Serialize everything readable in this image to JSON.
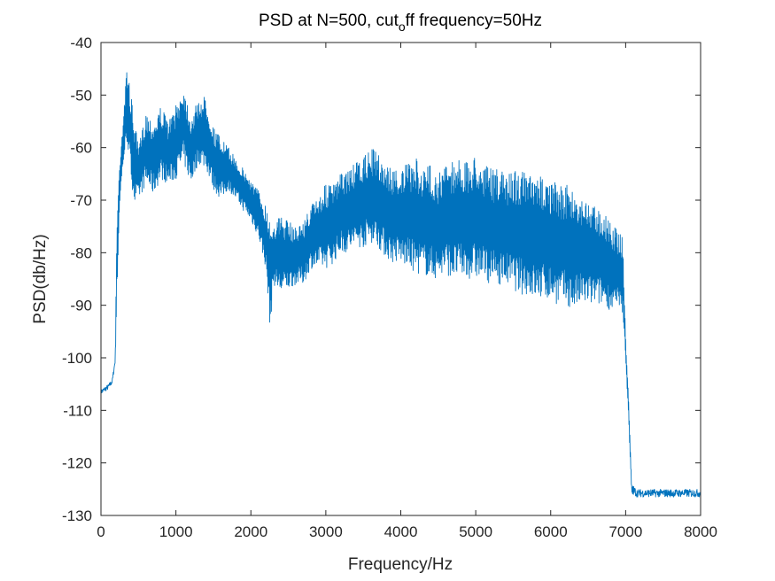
{
  "chart_data": {
    "type": "line",
    "title_main": "PSD at N=500, cut",
    "title_sub": "o",
    "title_tail": "ff frequency=50Hz",
    "xlabel": "Frequency/Hz",
    "ylabel": "PSD(db/Hz)",
    "xlim": [
      0,
      8000
    ],
    "ylim": [
      -130,
      -40
    ],
    "x_ticks": [
      0,
      1000,
      2000,
      3000,
      4000,
      5000,
      6000,
      7000,
      8000
    ],
    "y_ticks": [
      -40,
      -50,
      -60,
      -70,
      -80,
      -90,
      -100,
      -110,
      -120,
      -130
    ],
    "x_tick_labels": [
      "0",
      "1000",
      "2000",
      "3000",
      "4000",
      "5000",
      "6000",
      "7000",
      "8000"
    ],
    "y_tick_labels": [
      "-40",
      "-50",
      "-60",
      "-70",
      "-80",
      "-90",
      "-100",
      "-110",
      "-120",
      "-130"
    ],
    "grid": false,
    "line_color": "#0072BD",
    "series": [
      {
        "upper": [
          [
            0,
            -106
          ],
          [
            100,
            -105
          ],
          [
            150,
            -104
          ],
          [
            190,
            -100
          ],
          [
            210,
            -75
          ],
          [
            250,
            -62
          ],
          [
            300,
            -53
          ],
          [
            350,
            -44
          ],
          [
            400,
            -50
          ],
          [
            500,
            -60
          ],
          [
            600,
            -53
          ],
          [
            700,
            -55
          ],
          [
            800,
            -52
          ],
          [
            900,
            -55
          ],
          [
            1000,
            -52
          ],
          [
            1100,
            -48
          ],
          [
            1200,
            -54
          ],
          [
            1300,
            -51
          ],
          [
            1400,
            -50
          ],
          [
            1500,
            -56
          ],
          [
            1600,
            -58
          ],
          [
            1700,
            -60
          ],
          [
            1800,
            -62
          ],
          [
            1900,
            -64
          ],
          [
            2000,
            -66
          ],
          [
            2100,
            -68
          ],
          [
            2200,
            -71
          ],
          [
            2300,
            -74
          ],
          [
            2400,
            -73
          ],
          [
            2500,
            -74
          ],
          [
            2600,
            -75
          ],
          [
            2700,
            -74
          ],
          [
            2800,
            -71
          ],
          [
            2900,
            -69
          ],
          [
            3000,
            -67
          ],
          [
            3100,
            -67
          ],
          [
            3200,
            -65
          ],
          [
            3300,
            -64
          ],
          [
            3400,
            -63
          ],
          [
            3500,
            -62
          ],
          [
            3600,
            -60
          ],
          [
            3700,
            -61
          ],
          [
            3800,
            -63
          ],
          [
            3900,
            -64
          ],
          [
            4000,
            -64
          ],
          [
            4100,
            -63
          ],
          [
            4200,
            -62
          ],
          [
            4300,
            -64
          ],
          [
            4400,
            -63
          ],
          [
            4500,
            -65
          ],
          [
            4600,
            -63
          ],
          [
            4700,
            -62
          ],
          [
            4800,
            -62
          ],
          [
            4900,
            -63
          ],
          [
            5000,
            -61
          ],
          [
            5100,
            -63
          ],
          [
            5200,
            -64
          ],
          [
            5300,
            -64
          ],
          [
            5400,
            -65
          ],
          [
            5500,
            -64
          ],
          [
            5600,
            -64
          ],
          [
            5700,
            -65
          ],
          [
            5800,
            -66
          ],
          [
            5900,
            -65
          ],
          [
            6000,
            -66
          ],
          [
            6100,
            -67
          ],
          [
            6200,
            -67
          ],
          [
            6300,
            -68
          ],
          [
            6400,
            -69
          ],
          [
            6500,
            -70
          ],
          [
            6600,
            -71
          ],
          [
            6700,
            -72
          ],
          [
            6800,
            -74
          ],
          [
            6900,
            -76
          ],
          [
            6960,
            -77
          ],
          [
            7000,
            -96
          ],
          [
            7040,
            -108
          ],
          [
            7080,
            -124
          ],
          [
            7150,
            -125
          ],
          [
            8000,
            -125
          ]
        ],
        "lower": [
          [
            0,
            -107
          ],
          [
            100,
            -106
          ],
          [
            150,
            -105
          ],
          [
            190,
            -101
          ],
          [
            210,
            -90
          ],
          [
            250,
            -71
          ],
          [
            300,
            -63
          ],
          [
            350,
            -59
          ],
          [
            400,
            -66
          ],
          [
            450,
            -71
          ],
          [
            500,
            -70
          ],
          [
            600,
            -67
          ],
          [
            700,
            -69
          ],
          [
            800,
            -66
          ],
          [
            900,
            -67
          ],
          [
            1000,
            -66
          ],
          [
            1100,
            -63
          ],
          [
            1200,
            -67
          ],
          [
            1300,
            -63
          ],
          [
            1400,
            -64
          ],
          [
            1500,
            -68
          ],
          [
            1600,
            -70
          ],
          [
            1700,
            -68
          ],
          [
            1800,
            -70
          ],
          [
            1900,
            -72
          ],
          [
            2000,
            -74
          ],
          [
            2100,
            -77
          ],
          [
            2200,
            -83
          ],
          [
            2260,
            -95
          ],
          [
            2300,
            -86
          ],
          [
            2400,
            -88
          ],
          [
            2500,
            -87
          ],
          [
            2600,
            -86
          ],
          [
            2700,
            -86
          ],
          [
            2800,
            -83
          ],
          [
            2900,
            -83
          ],
          [
            3000,
            -83
          ],
          [
            3100,
            -82
          ],
          [
            3200,
            -80
          ],
          [
            3300,
            -80
          ],
          [
            3400,
            -79
          ],
          [
            3500,
            -79
          ],
          [
            3600,
            -78
          ],
          [
            3700,
            -79
          ],
          [
            3800,
            -81
          ],
          [
            3900,
            -82
          ],
          [
            4000,
            -82
          ],
          [
            4100,
            -83
          ],
          [
            4200,
            -84
          ],
          [
            4300,
            -84
          ],
          [
            4400,
            -85
          ],
          [
            4500,
            -85
          ],
          [
            4600,
            -84
          ],
          [
            4700,
            -85
          ],
          [
            4800,
            -85
          ],
          [
            4900,
            -85
          ],
          [
            5000,
            -85
          ],
          [
            5100,
            -85
          ],
          [
            5200,
            -86
          ],
          [
            5300,
            -86
          ],
          [
            5400,
            -86
          ],
          [
            5500,
            -87
          ],
          [
            5600,
            -88
          ],
          [
            5700,
            -88
          ],
          [
            5800,
            -89
          ],
          [
            5900,
            -89
          ],
          [
            6000,
            -89
          ],
          [
            6100,
            -90
          ],
          [
            6200,
            -90
          ],
          [
            6300,
            -91
          ],
          [
            6400,
            -90
          ],
          [
            6500,
            -90
          ],
          [
            6600,
            -90
          ],
          [
            6700,
            -90
          ],
          [
            6800,
            -91
          ],
          [
            6900,
            -91
          ],
          [
            6960,
            -92
          ],
          [
            7000,
            -100
          ],
          [
            7040,
            -112
          ],
          [
            7080,
            -126
          ],
          [
            7150,
            -126.5
          ],
          [
            8000,
            -126.5
          ]
        ]
      }
    ]
  }
}
